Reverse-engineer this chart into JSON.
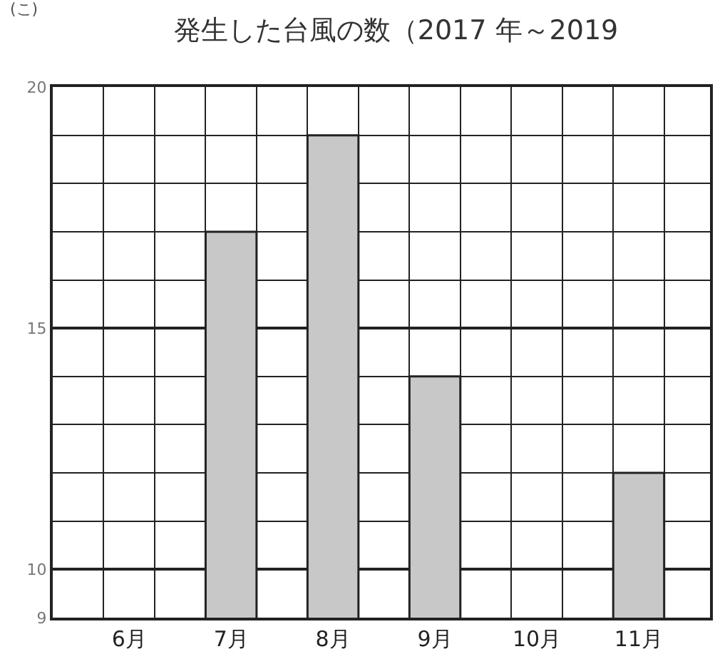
{
  "chart_data": {
    "type": "bar",
    "title": "発生した台風の数（2017 年～2019",
    "annotations": [
      "(こ)"
    ],
    "categories": [
      "6月",
      "7月",
      "8月",
      "9月",
      "10月",
      "11月"
    ],
    "values": [
      null,
      17,
      19,
      14,
      null,
      12
    ],
    "color": "#c8c8c8",
    "ylim": [
      9,
      20
    ],
    "yticks": [
      9,
      10,
      15,
      20
    ],
    "grid": true
  }
}
